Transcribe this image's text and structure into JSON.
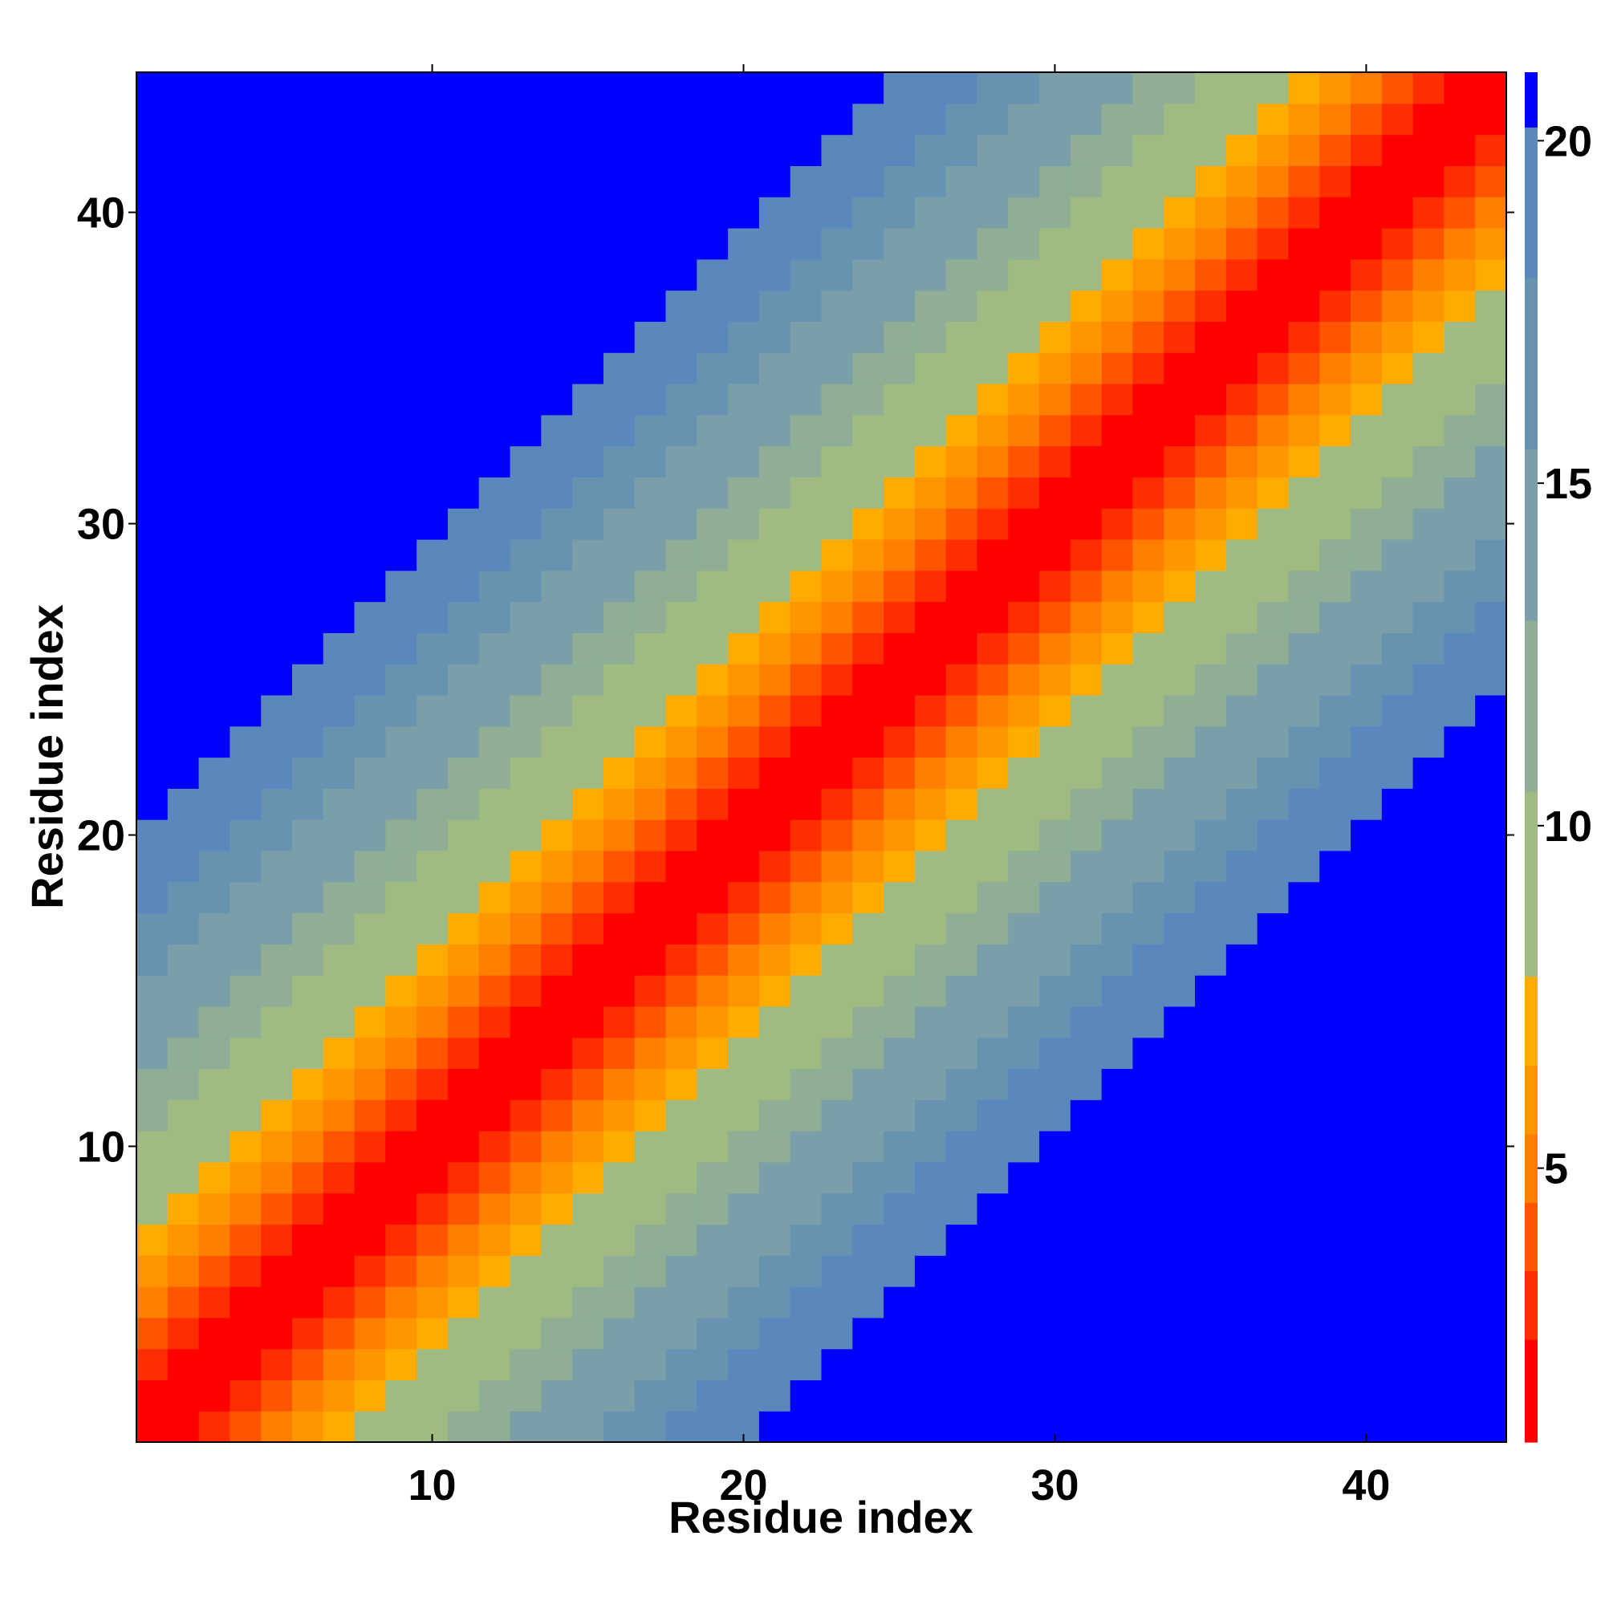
{
  "chart_data": {
    "type": "heatmap",
    "title": "",
    "xlabel": "Residue index",
    "ylabel": "Residue index",
    "xlim": [
      0.5,
      44.5
    ],
    "ylim": [
      0.5,
      44.5
    ],
    "x_ticks": [
      10,
      20,
      30,
      40
    ],
    "y_ticks": [
      10,
      20,
      30,
      40
    ],
    "colorbar": {
      "range": [
        1,
        21
      ],
      "ticks": [
        5,
        10,
        15,
        20
      ],
      "levels": [
        {
          "min": 1,
          "max": 2.5,
          "color": "#ff0000"
        },
        {
          "min": 2.5,
          "max": 3.5,
          "color": "#ff2e00"
        },
        {
          "min": 3.5,
          "max": 4.5,
          "color": "#ff5500"
        },
        {
          "min": 4.5,
          "max": 5.5,
          "color": "#ff7f00"
        },
        {
          "min": 5.5,
          "max": 6.5,
          "color": "#ff9500"
        },
        {
          "min": 6.5,
          "max": 7.8,
          "color": "#ffab00"
        },
        {
          "min": 7.8,
          "max": 10.5,
          "color": "#9fbb82"
        },
        {
          "min": 10.5,
          "max": 13,
          "color": "#8fae95"
        },
        {
          "min": 13,
          "max": 15.5,
          "color": "#7a9fa8"
        },
        {
          "min": 15.5,
          "max": 18,
          "color": "#6893b0"
        },
        {
          "min": 18,
          "max": 20.2,
          "color": "#5a87bc"
        },
        {
          "min": 20.2,
          "max": 21,
          "color": "#0000ff"
        }
      ]
    },
    "n": 44,
    "cell_rule": "value = |i - j| + 1 (approximate distance-map pattern); values >= 20.2 saturate to blue",
    "cap": 20.5
  }
}
